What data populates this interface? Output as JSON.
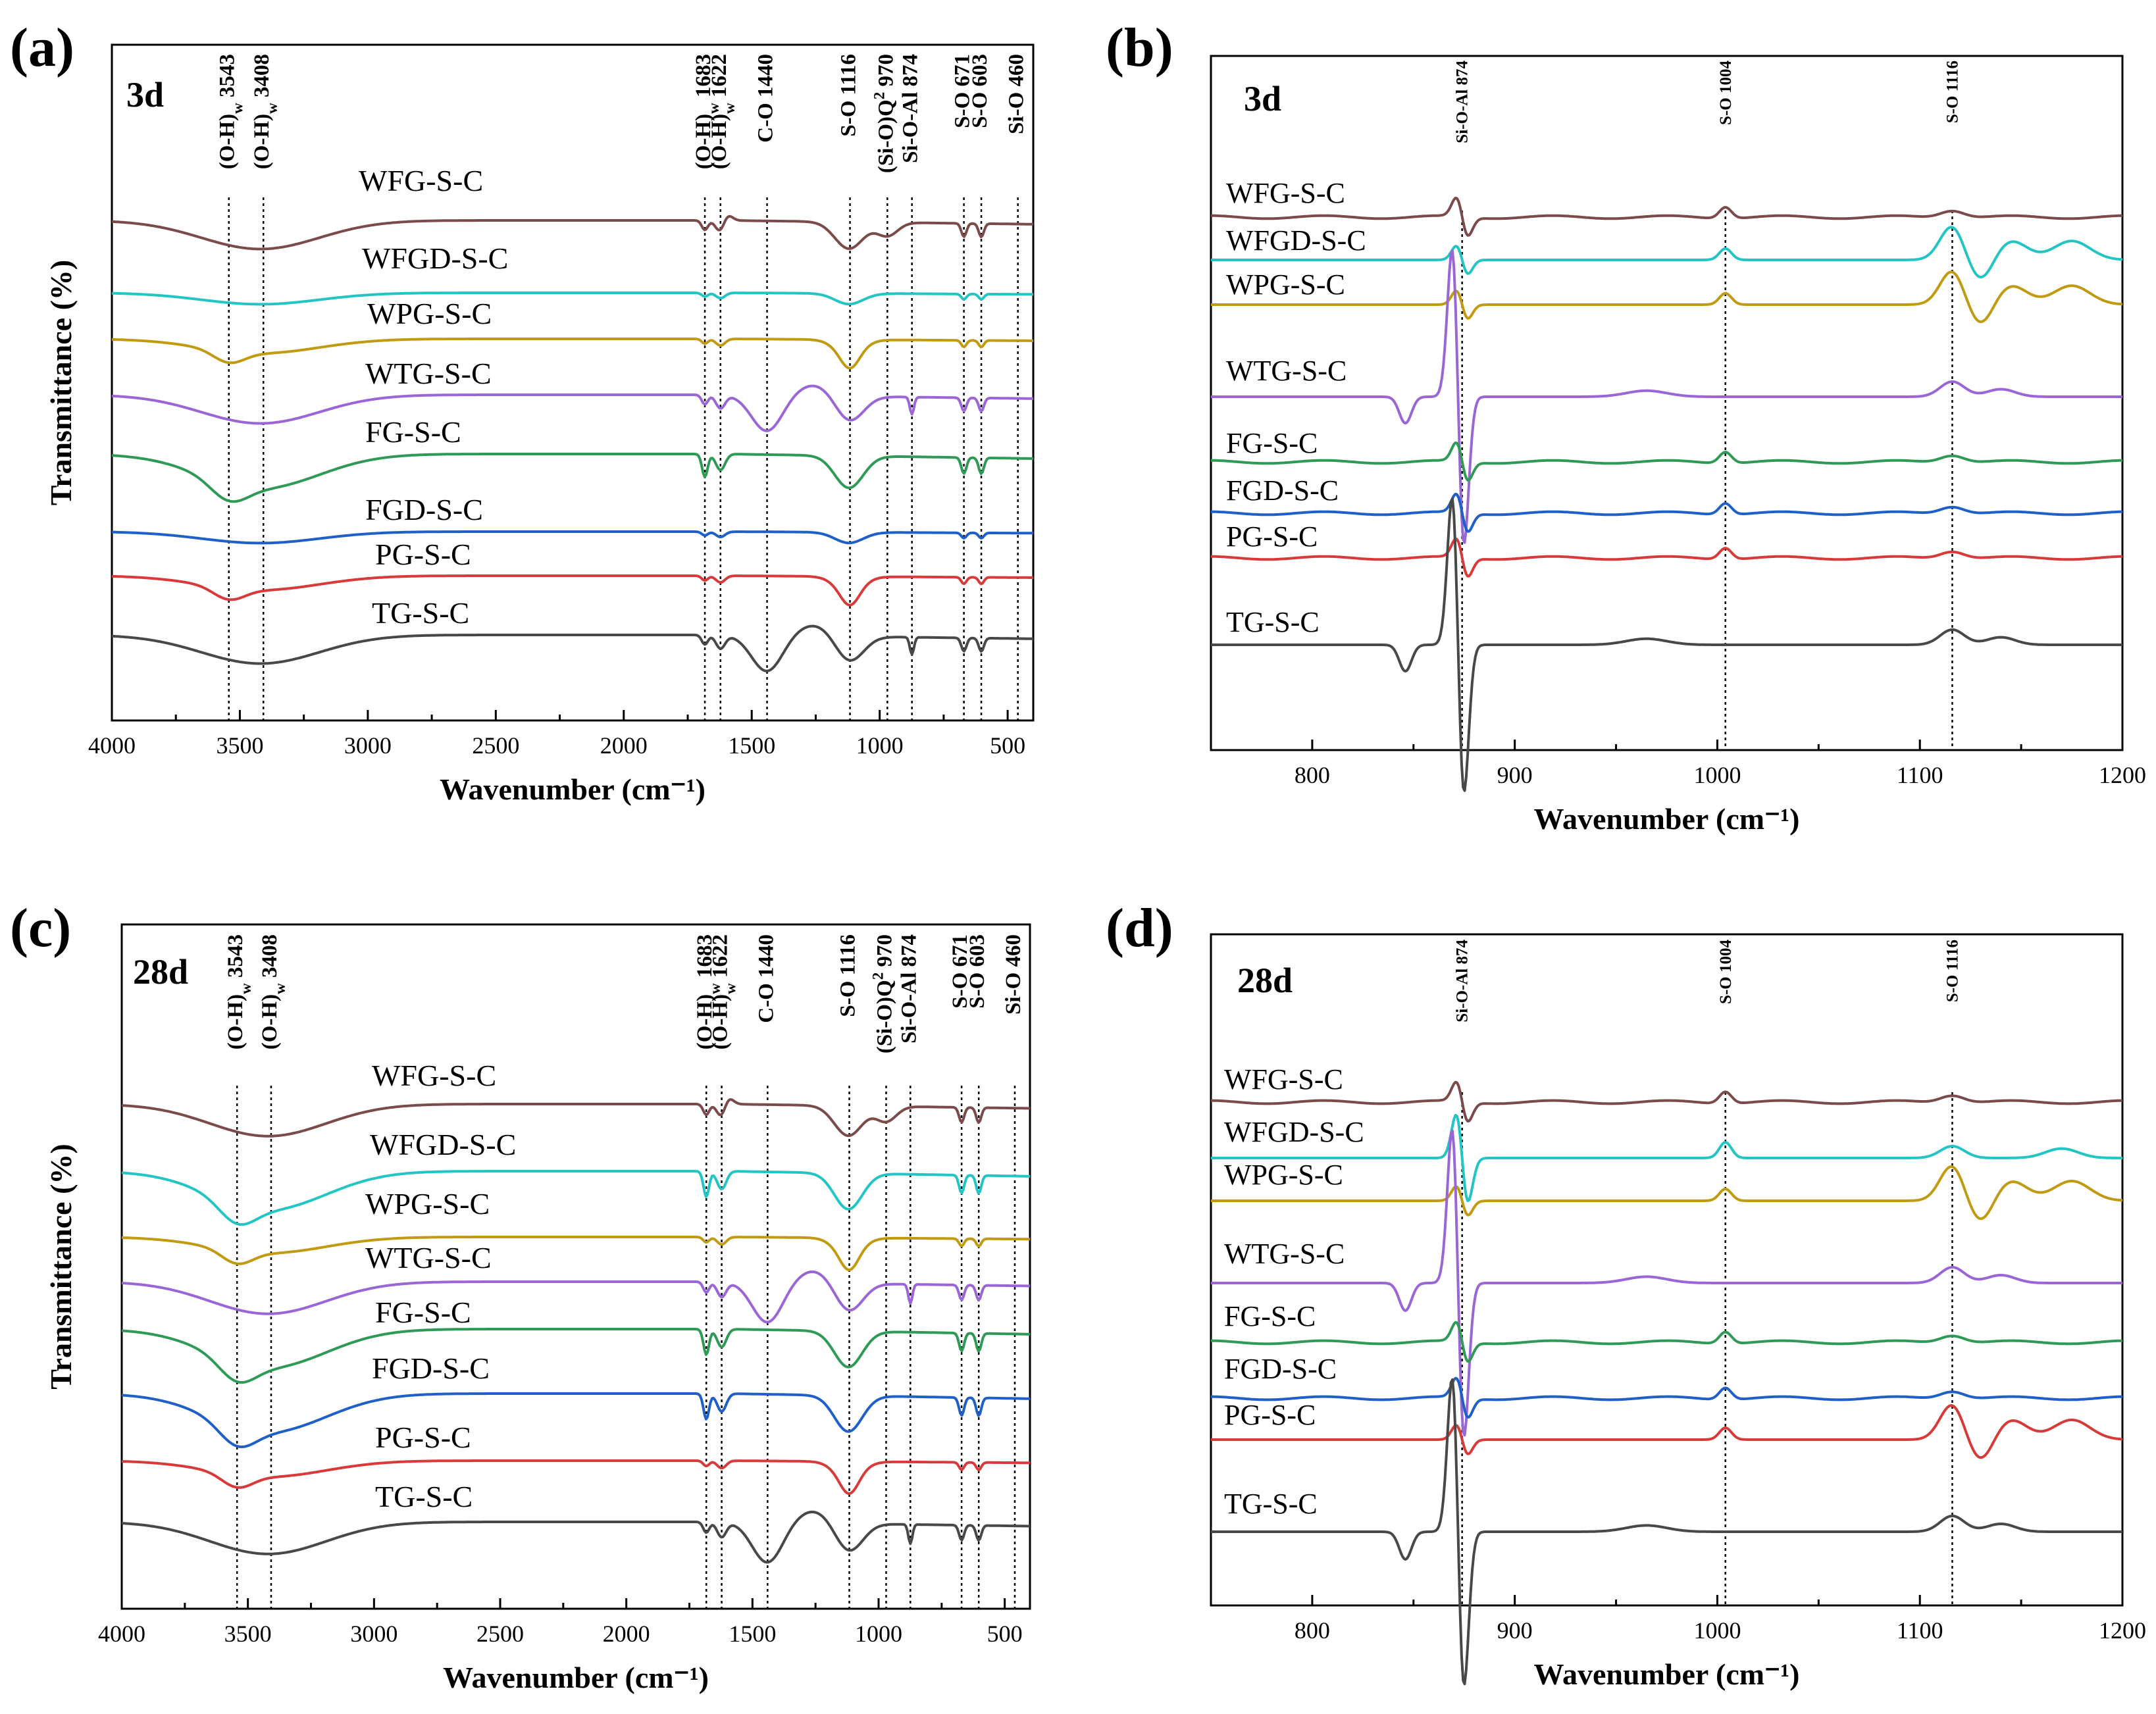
{
  "chart_data": [
    {
      "id": "a",
      "type": "line",
      "panel_label": "(a)",
      "age": "3d",
      "xlabel": "Wavenumber (cm⁻¹)",
      "ylabel": "Transmittance (%)",
      "xlim": [
        4000,
        400
      ],
      "x_ticks": [
        4000,
        3500,
        3000,
        2500,
        2000,
        1500,
        1000,
        500
      ],
      "series": [
        {
          "name": "WFG-S-C",
          "color": "#7b4a4a",
          "spectrum": "ftir_wfg"
        },
        {
          "name": "WFGD-S-C",
          "color": "#22c4c4",
          "spectrum": "ftir_flat"
        },
        {
          "name": "WPG-S-C",
          "color": "#c09a10",
          "spectrum": "ftir_sulfate"
        },
        {
          "name": "WTG-S-C",
          "color": "#9a66d6",
          "spectrum": "ftir_carbonate"
        },
        {
          "name": "FG-S-C",
          "color": "#2e9a55",
          "spectrum": "ftir_gypsum"
        },
        {
          "name": "FGD-S-C",
          "color": "#1f5fc8",
          "spectrum": "ftir_flat"
        },
        {
          "name": "PG-S-C",
          "color": "#d83a3a",
          "spectrum": "ftir_sulfate"
        },
        {
          "name": "TG-S-C",
          "color": "#484848",
          "spectrum": "ftir_carbonate"
        }
      ],
      "annotations": [
        {
          "x": 3543,
          "label": "(O-H)",
          "sub": "w",
          "value": " 3543"
        },
        {
          "x": 3408,
          "label": "(O-H)",
          "sub": "w",
          "value": " 3408"
        },
        {
          "x": 1683,
          "label": "(O-H)",
          "sub": "w",
          "value": " 1683"
        },
        {
          "x": 1622,
          "label": "(O-H)",
          "sub": "w",
          "value": " 1622"
        },
        {
          "x": 1440,
          "label": "C-O 1440"
        },
        {
          "x": 1116,
          "label": "S-O 1116"
        },
        {
          "x": 970,
          "label": "(Si-O)Q",
          "sup": "2",
          "value": " 970"
        },
        {
          "x": 874,
          "label": "Si-O-Al 874"
        },
        {
          "x": 671,
          "label": "S-O 671"
        },
        {
          "x": 603,
          "label": "S-O 603"
        },
        {
          "x": 460,
          "label": "Si-O 460"
        }
      ]
    },
    {
      "id": "b",
      "type": "line",
      "panel_label": "(b)",
      "age": "3d",
      "xlabel": "Wavenumber (cm⁻¹)",
      "xlim": [
        750,
        1200
      ],
      "x_ticks": [
        800,
        900,
        1000,
        1100,
        1200
      ],
      "series": [
        {
          "name": "WFG-S-C",
          "color": "#7b4a4a",
          "spectrum": "raman_small"
        },
        {
          "name": "WFGD-S-C",
          "color": "#22c4c4",
          "spectrum": "raman_wave"
        },
        {
          "name": "WPG-S-C",
          "color": "#c09a10",
          "spectrum": "raman_wave"
        },
        {
          "name": "WTG-S-C",
          "color": "#9a66d6",
          "spectrum": "raman_big"
        },
        {
          "name": "FG-S-C",
          "color": "#2e9a55",
          "spectrum": "raman_small"
        },
        {
          "name": "FGD-S-C",
          "color": "#1f5fc8",
          "spectrum": "raman_small"
        },
        {
          "name": "PG-S-C",
          "color": "#d83a3a",
          "spectrum": "raman_small"
        },
        {
          "name": "TG-S-C",
          "color": "#484848",
          "spectrum": "raman_big"
        }
      ],
      "annotations": [
        {
          "x": 874,
          "label": "Si-O-Al 874"
        },
        {
          "x": 1004,
          "label": "S-O 1004"
        },
        {
          "x": 1116,
          "label": "S-O 1116"
        }
      ]
    },
    {
      "id": "c",
      "type": "line",
      "panel_label": "(c)",
      "age": "28d",
      "xlabel": "Wavenumber (cm⁻¹)",
      "ylabel": "Transmittance (%)",
      "xlim": [
        4000,
        400
      ],
      "x_ticks": [
        4000,
        3500,
        3000,
        2500,
        2000,
        1500,
        1000,
        500
      ],
      "series": [
        {
          "name": "WFG-S-C",
          "color": "#7b4a4a",
          "spectrum": "ftir_wfg"
        },
        {
          "name": "WFGD-S-C",
          "color": "#22c4c4",
          "spectrum": "ftir_gypsum"
        },
        {
          "name": "WPG-S-C",
          "color": "#c09a10",
          "spectrum": "ftir_sulfate"
        },
        {
          "name": "WTG-S-C",
          "color": "#9a66d6",
          "spectrum": "ftir_carbonate"
        },
        {
          "name": "FG-S-C",
          "color": "#2e9a55",
          "spectrum": "ftir_gypsum"
        },
        {
          "name": "FGD-S-C",
          "color": "#1f5fc8",
          "spectrum": "ftir_gypsum"
        },
        {
          "name": "PG-S-C",
          "color": "#d83a3a",
          "spectrum": "ftir_sulfate"
        },
        {
          "name": "TG-S-C",
          "color": "#484848",
          "spectrum": "ftir_carbonate"
        }
      ],
      "annotations": [
        {
          "x": 3543,
          "label": "(O-H)",
          "sub": "w",
          "value": " 3543"
        },
        {
          "x": 3408,
          "label": "(O-H)",
          "sub": "w",
          "value": " 3408"
        },
        {
          "x": 1683,
          "label": "(O-H)",
          "sub": "w",
          "value": " 1683"
        },
        {
          "x": 1622,
          "label": "(O-H)",
          "sub": "w",
          "value": " 1622"
        },
        {
          "x": 1440,
          "label": "C-O 1440"
        },
        {
          "x": 1116,
          "label": "S-O 1116"
        },
        {
          "x": 970,
          "label": "(Si-O)Q",
          "sup": "2",
          "value": " 970"
        },
        {
          "x": 874,
          "label": "Si-O-Al 874"
        },
        {
          "x": 671,
          "label": "S-O 671"
        },
        {
          "x": 603,
          "label": "S-O 603"
        },
        {
          "x": 460,
          "label": "Si-O 460"
        }
      ]
    },
    {
      "id": "d",
      "type": "line",
      "panel_label": "(d)",
      "age": "28d",
      "xlabel": "Wavenumber (cm⁻¹)",
      "xlim": [
        750,
        1200
      ],
      "x_ticks": [
        800,
        900,
        1000,
        1100,
        1200
      ],
      "series": [
        {
          "name": "WFG-S-C",
          "color": "#7b4a4a",
          "spectrum": "raman_small"
        },
        {
          "name": "WFGD-S-C",
          "color": "#22c4c4",
          "spectrum": "raman_mid"
        },
        {
          "name": "WPG-S-C",
          "color": "#c09a10",
          "spectrum": "raman_wave"
        },
        {
          "name": "WTG-S-C",
          "color": "#9a66d6",
          "spectrum": "raman_big"
        },
        {
          "name": "FG-S-C",
          "color": "#2e9a55",
          "spectrum": "raman_small"
        },
        {
          "name": "FGD-S-C",
          "color": "#1f5fc8",
          "spectrum": "raman_small"
        },
        {
          "name": "PG-S-C",
          "color": "#d83a3a",
          "spectrum": "raman_wave"
        },
        {
          "name": "TG-S-C",
          "color": "#484848",
          "spectrum": "raman_big"
        }
      ],
      "annotations": [
        {
          "x": 874,
          "label": "Si-O-Al 874"
        },
        {
          "x": 1004,
          "label": "S-O 1004"
        },
        {
          "x": 1116,
          "label": "S-O 1116"
        }
      ]
    }
  ]
}
